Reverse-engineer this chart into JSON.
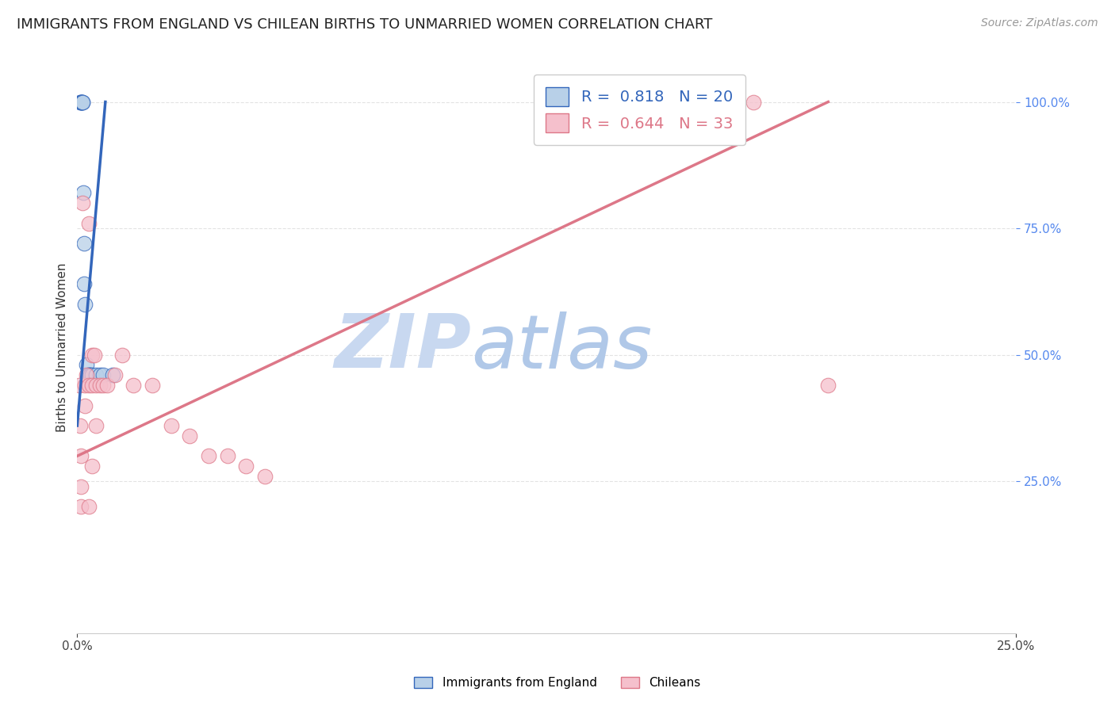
{
  "title": "IMMIGRANTS FROM ENGLAND VS CHILEAN BIRTHS TO UNMARRIED WOMEN CORRELATION CHART",
  "source": "Source: ZipAtlas.com",
  "ylabel": "Births to Unmarried Women",
  "legend_blue_R": "0.818",
  "legend_blue_N": "20",
  "legend_pink_R": "0.644",
  "legend_pink_N": "33",
  "legend_blue_label": "Immigrants from England",
  "legend_pink_label": "Chileans",
  "blue_scatter_x": [
    0.0008,
    0.0009,
    0.001,
    0.0011,
    0.0012,
    0.0013,
    0.0014,
    0.0016,
    0.0018,
    0.0018,
    0.002,
    0.0025,
    0.003,
    0.003,
    0.0035,
    0.004,
    0.005,
    0.006,
    0.007,
    0.0095
  ],
  "blue_scatter_y": [
    1.0,
    1.0,
    1.0,
    1.0,
    1.0,
    1.0,
    1.0,
    0.82,
    0.72,
    0.64,
    0.6,
    0.48,
    0.46,
    0.46,
    0.46,
    0.46,
    0.46,
    0.46,
    0.46,
    0.46
  ],
  "pink_scatter_x": [
    0.0005,
    0.0008,
    0.001,
    0.001,
    0.001,
    0.0015,
    0.002,
    0.002,
    0.0025,
    0.003,
    0.003,
    0.003,
    0.004,
    0.004,
    0.004,
    0.0045,
    0.005,
    0.005,
    0.006,
    0.007,
    0.008,
    0.01,
    0.012,
    0.015,
    0.02,
    0.025,
    0.03,
    0.035,
    0.04,
    0.045,
    0.05,
    0.18,
    0.2
  ],
  "pink_scatter_y": [
    0.44,
    0.36,
    0.3,
    0.24,
    0.2,
    0.8,
    0.44,
    0.4,
    0.46,
    0.76,
    0.44,
    0.2,
    0.5,
    0.44,
    0.28,
    0.5,
    0.44,
    0.36,
    0.44,
    0.44,
    0.44,
    0.46,
    0.5,
    0.44,
    0.44,
    0.36,
    0.34,
    0.3,
    0.3,
    0.28,
    0.26,
    1.0,
    0.44
  ],
  "blue_line_x": [
    0.0,
    0.0075
  ],
  "blue_line_y": [
    0.36,
    1.0
  ],
  "pink_line_x": [
    0.0,
    0.2
  ],
  "pink_line_y": [
    0.3,
    1.0
  ],
  "blue_color": "#b8d0e8",
  "pink_color": "#f5c0cc",
  "blue_line_color": "#3366bb",
  "pink_line_color": "#dd7788",
  "watermark_zip_color": "#c8d8f0",
  "watermark_atlas_color": "#b8cce4",
  "background_color": "#ffffff",
  "grid_color": "#dddddd",
  "xlim": [
    0.0,
    0.25
  ],
  "ylim": [
    -0.05,
    1.08
  ],
  "yticks": [
    0.25,
    0.5,
    0.75,
    1.0
  ],
  "xticks": [
    0.0,
    0.25
  ],
  "title_fontsize": 13,
  "source_fontsize": 10,
  "axis_label_fontsize": 11,
  "tick_fontsize": 11,
  "right_tick_color": "#5588ee"
}
